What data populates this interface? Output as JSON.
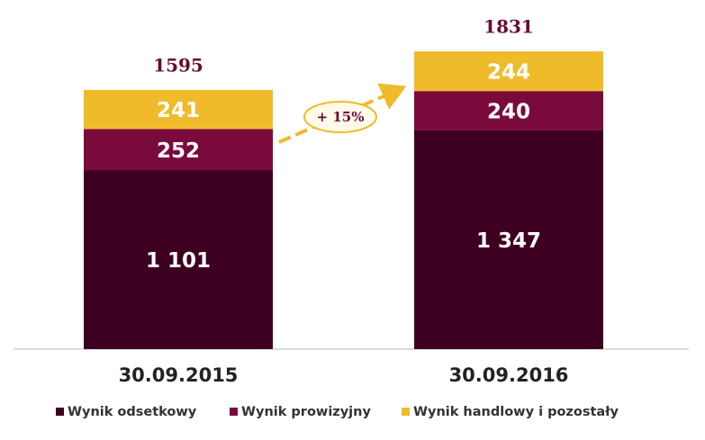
{
  "chart_data": {
    "type": "bar",
    "stacked": true,
    "categories": [
      "30.09.2015",
      "30.09.2016"
    ],
    "series": [
      {
        "name": "Wynik odsetkowy",
        "color": "#3e0020",
        "values": [
          1101,
          1347
        ],
        "value_labels": [
          "1 101",
          "1 347"
        ]
      },
      {
        "name": "Wynik prowizyjny",
        "color": "#7b0a3c",
        "values": [
          252,
          240
        ]
      },
      {
        "name": "Wynik handlowy i pozostały",
        "color": "#f0bb2b",
        "values": [
          241,
          244
        ]
      }
    ],
    "totals": [
      1595,
      1831
    ],
    "annotation": "+ 15%"
  }
}
